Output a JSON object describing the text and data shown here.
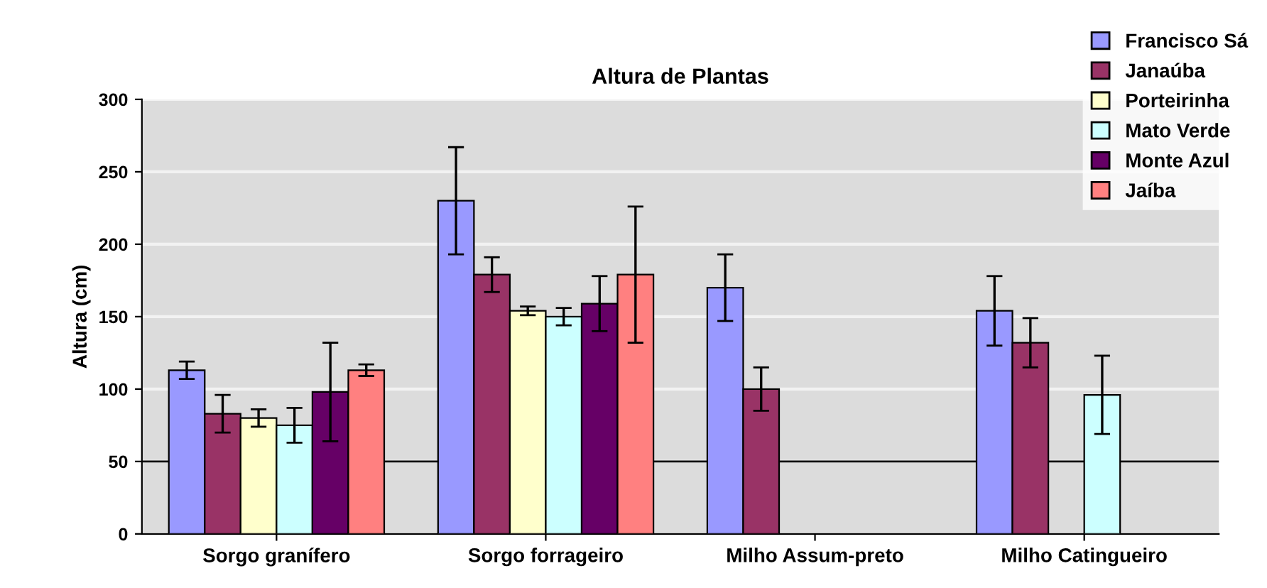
{
  "chart_data": {
    "type": "bar",
    "title": "Altura de Plantas",
    "ylabel": "Altura (cm)",
    "categories": [
      "Sorgo granífero",
      "Sorgo forrageiro",
      "Milho Assum-preto",
      "Milho Catingueiro"
    ],
    "series": [
      {
        "name": "Francisco Sá",
        "color": "#9999ff",
        "values": [
          113,
          230,
          170,
          154
        ],
        "errors": [
          6,
          37,
          23,
          24
        ]
      },
      {
        "name": "Janaúba",
        "color": "#993366",
        "values": [
          83,
          179,
          100,
          132
        ],
        "errors": [
          13,
          12,
          15,
          17
        ]
      },
      {
        "name": "Porteirinha",
        "color": "#ffffcc",
        "values": [
          80,
          154,
          null,
          null
        ],
        "errors": [
          6,
          3,
          null,
          null
        ]
      },
      {
        "name": "Mato Verde",
        "color": "#ccffff",
        "values": [
          75,
          150,
          null,
          96
        ],
        "errors": [
          12,
          6,
          null,
          27
        ]
      },
      {
        "name": "Monte Azul",
        "color": "#660066",
        "values": [
          98,
          159,
          null,
          null
        ],
        "errors": [
          34,
          19,
          null,
          null
        ]
      },
      {
        "name": "Jaíba",
        "color": "#ff8080",
        "values": [
          113,
          179,
          null,
          null
        ],
        "errors": [
          4,
          47,
          null,
          null
        ]
      }
    ],
    "ylim": [
      0,
      300
    ],
    "yticks": [
      0,
      50,
      100,
      150,
      200,
      250,
      300
    ],
    "grid": "y",
    "legend": "top right",
    "ref_lines": [
      {
        "axis": "y",
        "value": 50,
        "color": "#000000"
      }
    ]
  }
}
